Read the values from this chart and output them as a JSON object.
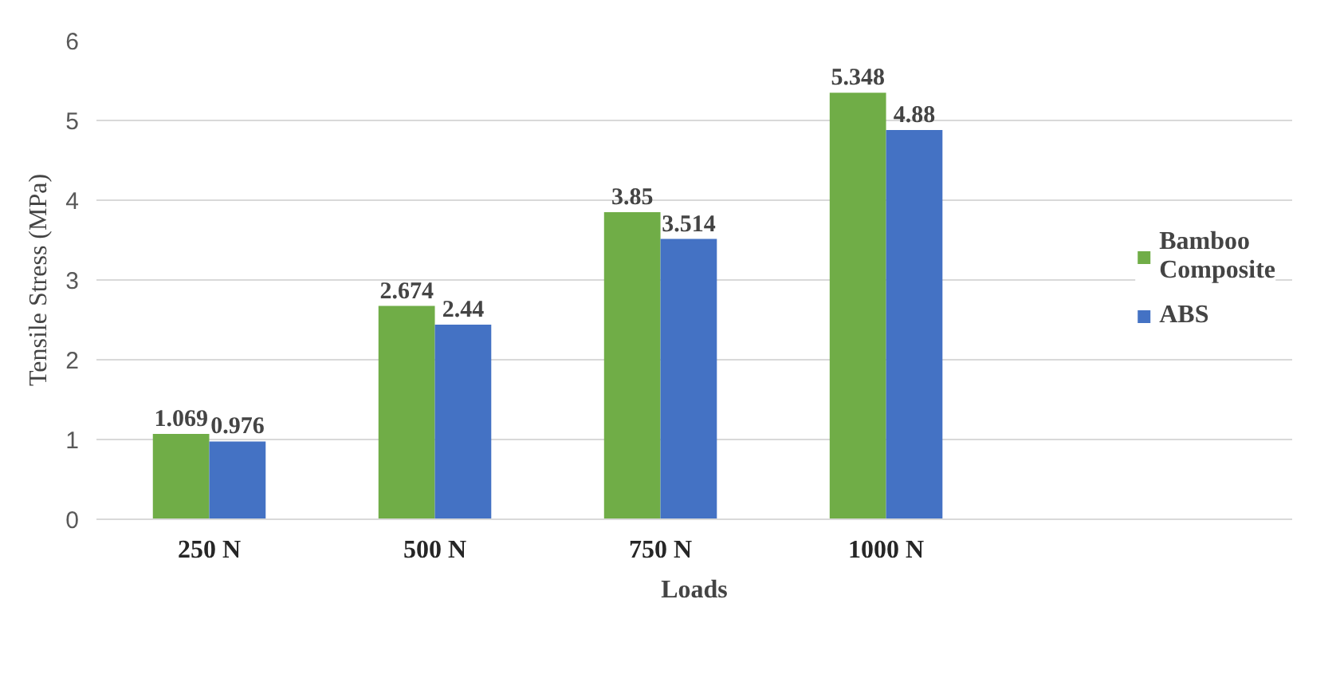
{
  "chart_data": {
    "type": "bar",
    "xlabel": "Loads",
    "ylabel": "Tensile Stress (MPa)",
    "categories": [
      "250 N",
      "500 N",
      "750 N",
      "1000 N"
    ],
    "series": [
      {
        "name": "Bamboo Composite",
        "color": "#70ad47",
        "values": [
          1.069,
          2.674,
          3.85,
          5.348
        ]
      },
      {
        "name": "ABS",
        "color": "#4472c4",
        "values": [
          0.976,
          2.44,
          3.514,
          4.88
        ]
      }
    ],
    "ylim": [
      0,
      6
    ],
    "yticks": [
      0,
      1,
      2,
      3,
      4,
      5,
      6
    ],
    "grid": "y",
    "legend": "right",
    "data_labels": true
  }
}
